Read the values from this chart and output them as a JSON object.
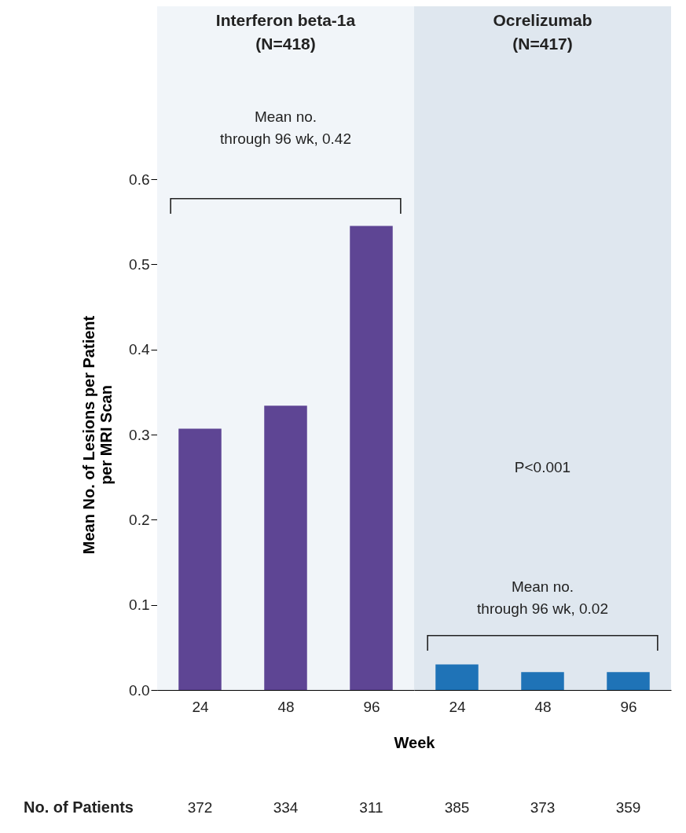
{
  "chart_data": [
    {
      "type": "bar",
      "title": "Interferon beta-1a\n(N=418)",
      "ylabel": "Mean No. of Lesions per Patient\nper MRI Scan",
      "xlabel": "Week",
      "categories": [
        "24",
        "48",
        "96"
      ],
      "series": [
        {
          "color": "#5e4594",
          "values": [
            0.307,
            0.334,
            0.545
          ]
        }
      ],
      "ylim": [
        0,
        0.6
      ],
      "yticks": [
        {
          "value": 0,
          "label": "0.0"
        },
        0.1,
        0.2,
        0.3,
        0.4,
        0.5,
        0.6
      ],
      "bands": [
        {
          "axis": "x",
          "from": "24",
          "to": "96",
          "color": "#f1f5f9"
        }
      ],
      "annotations": [
        "Mean no.\nthrough 96 wk, 0.42",
        "No. of Patients",
        "372",
        "334",
        "311"
      ]
    },
    {
      "type": "bar",
      "title": "Ocrelizumab\n(N=417)",
      "categories": [
        "24",
        "48",
        "96"
      ],
      "series": [
        {
          "color": "#1f73b7",
          "values": [
            0.03,
            0.021,
            0.021
          ]
        }
      ],
      "ylim": [
        0,
        0.6
      ],
      "tick_labels": "x",
      "bands": [
        {
          "axis": "x",
          "from": "24",
          "to": "96",
          "color": "#dfe7ef"
        }
      ],
      "annotations": [
        "P<0.001",
        "Mean no.\nthrough 96 wk, 0.02",
        "385",
        "373",
        "359"
      ]
    }
  ]
}
